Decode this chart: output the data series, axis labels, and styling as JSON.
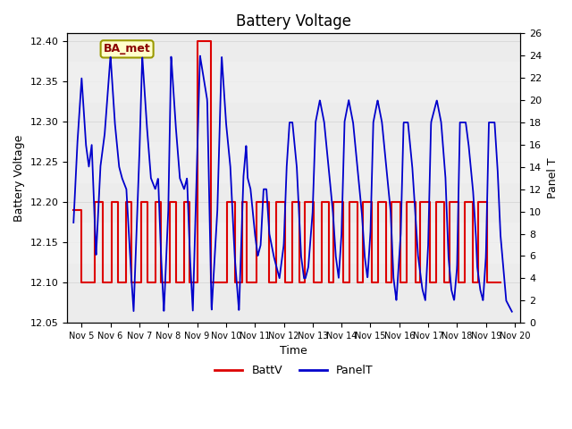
{
  "title": "Battery Voltage",
  "xlabel": "Time",
  "ylabel_left": "Battery Voltage",
  "ylabel_right": "Panel T",
  "annotation": "BA_met",
  "xlim": [
    4.5,
    20.2
  ],
  "ylim_left": [
    12.05,
    12.41
  ],
  "ylim_right": [
    0,
    26
  ],
  "yticks_left": [
    12.05,
    12.1,
    12.15,
    12.2,
    12.25,
    12.3,
    12.35,
    12.4
  ],
  "yticks_right": [
    0,
    2,
    4,
    6,
    8,
    10,
    12,
    14,
    16,
    18,
    20,
    22,
    24,
    26
  ],
  "xtick_labels": [
    "Nov 5",
    "Nov 6",
    "Nov 7",
    "Nov 8",
    "Nov 9",
    "Nov 10",
    "Nov 11",
    "Nov 12",
    "Nov 13",
    "Nov 14",
    "Nov 15",
    "Nov 16",
    "Nov 17",
    "Nov 18",
    "Nov 19",
    "Nov 20"
  ],
  "xtick_positions": [
    5,
    6,
    7,
    8,
    9,
    10,
    11,
    12,
    13,
    14,
    15,
    16,
    17,
    18,
    19,
    20
  ],
  "line_batt_color": "#dd0000",
  "line_panel_color": "#0000cc",
  "legend_labels": [
    "BattV",
    "PanelT"
  ],
  "bg_gray_color": "#d8d8d8",
  "bg_band_color": "#e8e8e8",
  "title_fontsize": 12,
  "axis_label_fontsize": 9,
  "tick_fontsize": 8,
  "xtick_fontsize": 7
}
